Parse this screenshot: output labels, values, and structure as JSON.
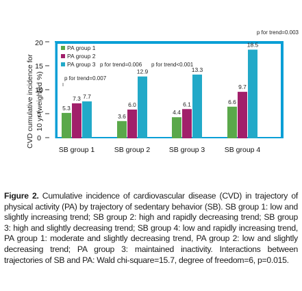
{
  "chart_data": {
    "type": "bar",
    "categories": [
      "SB group 1",
      "SB group 2",
      "SB group 3",
      "SB group 4"
    ],
    "series": [
      {
        "name": "PA group 1",
        "color": "#5aa84a",
        "values": [
          5.3,
          3.6,
          4.4,
          6.6
        ]
      },
      {
        "name": "PA group 2",
        "color": "#a11f6a",
        "values": [
          7.3,
          6.0,
          6.1,
          9.7
        ]
      },
      {
        "name": "PA group 3",
        "color": "#22a9c8",
        "values": [
          7.7,
          12.9,
          13.3,
          18.5
        ]
      }
    ],
    "value_labels": [
      [
        "5.3",
        "3.6",
        "4.4",
        "6.6"
      ],
      [
        "7.3",
        "6.0",
        "6.1",
        "9.7"
      ],
      [
        "7.7",
        "12.9",
        "13.3",
        "18.5"
      ]
    ],
    "ylabel_line1": "CVD cumulative incidence for",
    "ylabel_line2": "10 yr (weighted %)",
    "ylim": [
      0,
      20
    ],
    "yticks": [
      "0",
      "5",
      "10",
      "15",
      "20"
    ],
    "legend_position": "top-left",
    "plot_background": "#0a9fd6",
    "annotations": [
      "p for trend=0.007",
      "p for trend=0.006",
      "p for trend<0.001",
      "p for trend=0.003"
    ]
  },
  "caption": {
    "figure_label": "Figure 2.",
    "text": " Cumulative incidence of cardiovascular disease (CVD) in trajectory of physical activity (PA) by trajectory of sedentary behavior (SB). SB group 1: low and slightly increasing trend; SB group 2: high and rapidly decreasing trend; SB group 3: high and slightly decreasing trend; SB group 4: low and rapidly increasing trend, PA group 1: moderate and slightly decreasing trend, PA group 2: low and slightly decreasing trend; PA group 3: maintained inactivity. Interactions between trajectories of SB and PA: Wald chi-square=15.7, degree of freedom=6, p=0.015."
  }
}
